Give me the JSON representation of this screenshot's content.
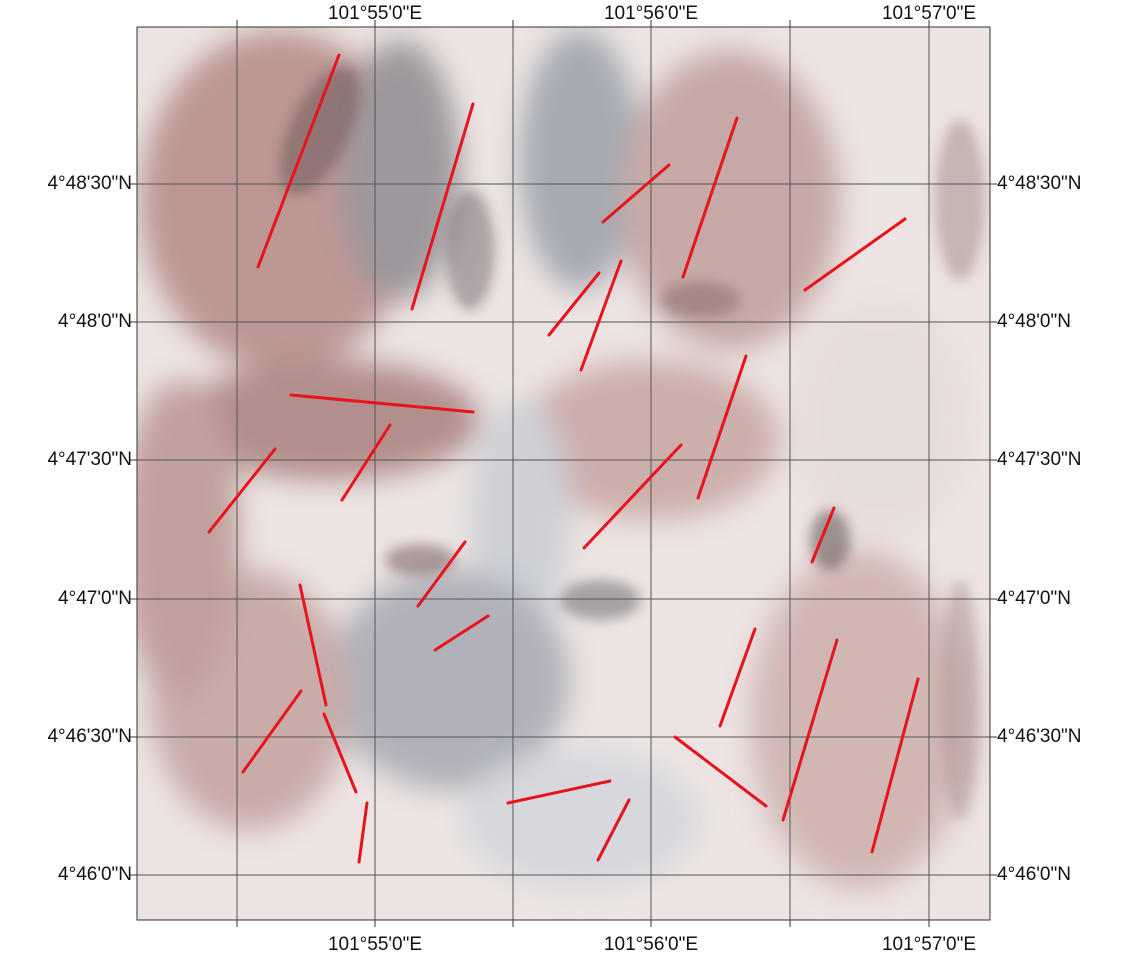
{
  "longitude_labels": [
    "101°55'0\"E",
    "101°56'0\"E",
    "101°57'0\"E"
  ],
  "latitude_labels": [
    "4°48'30\"N",
    "4°48'0\"N",
    "4°47'30\"N",
    "4°47'0\"N",
    "4°46'30\"N",
    "4°46'0\"N"
  ]
}
